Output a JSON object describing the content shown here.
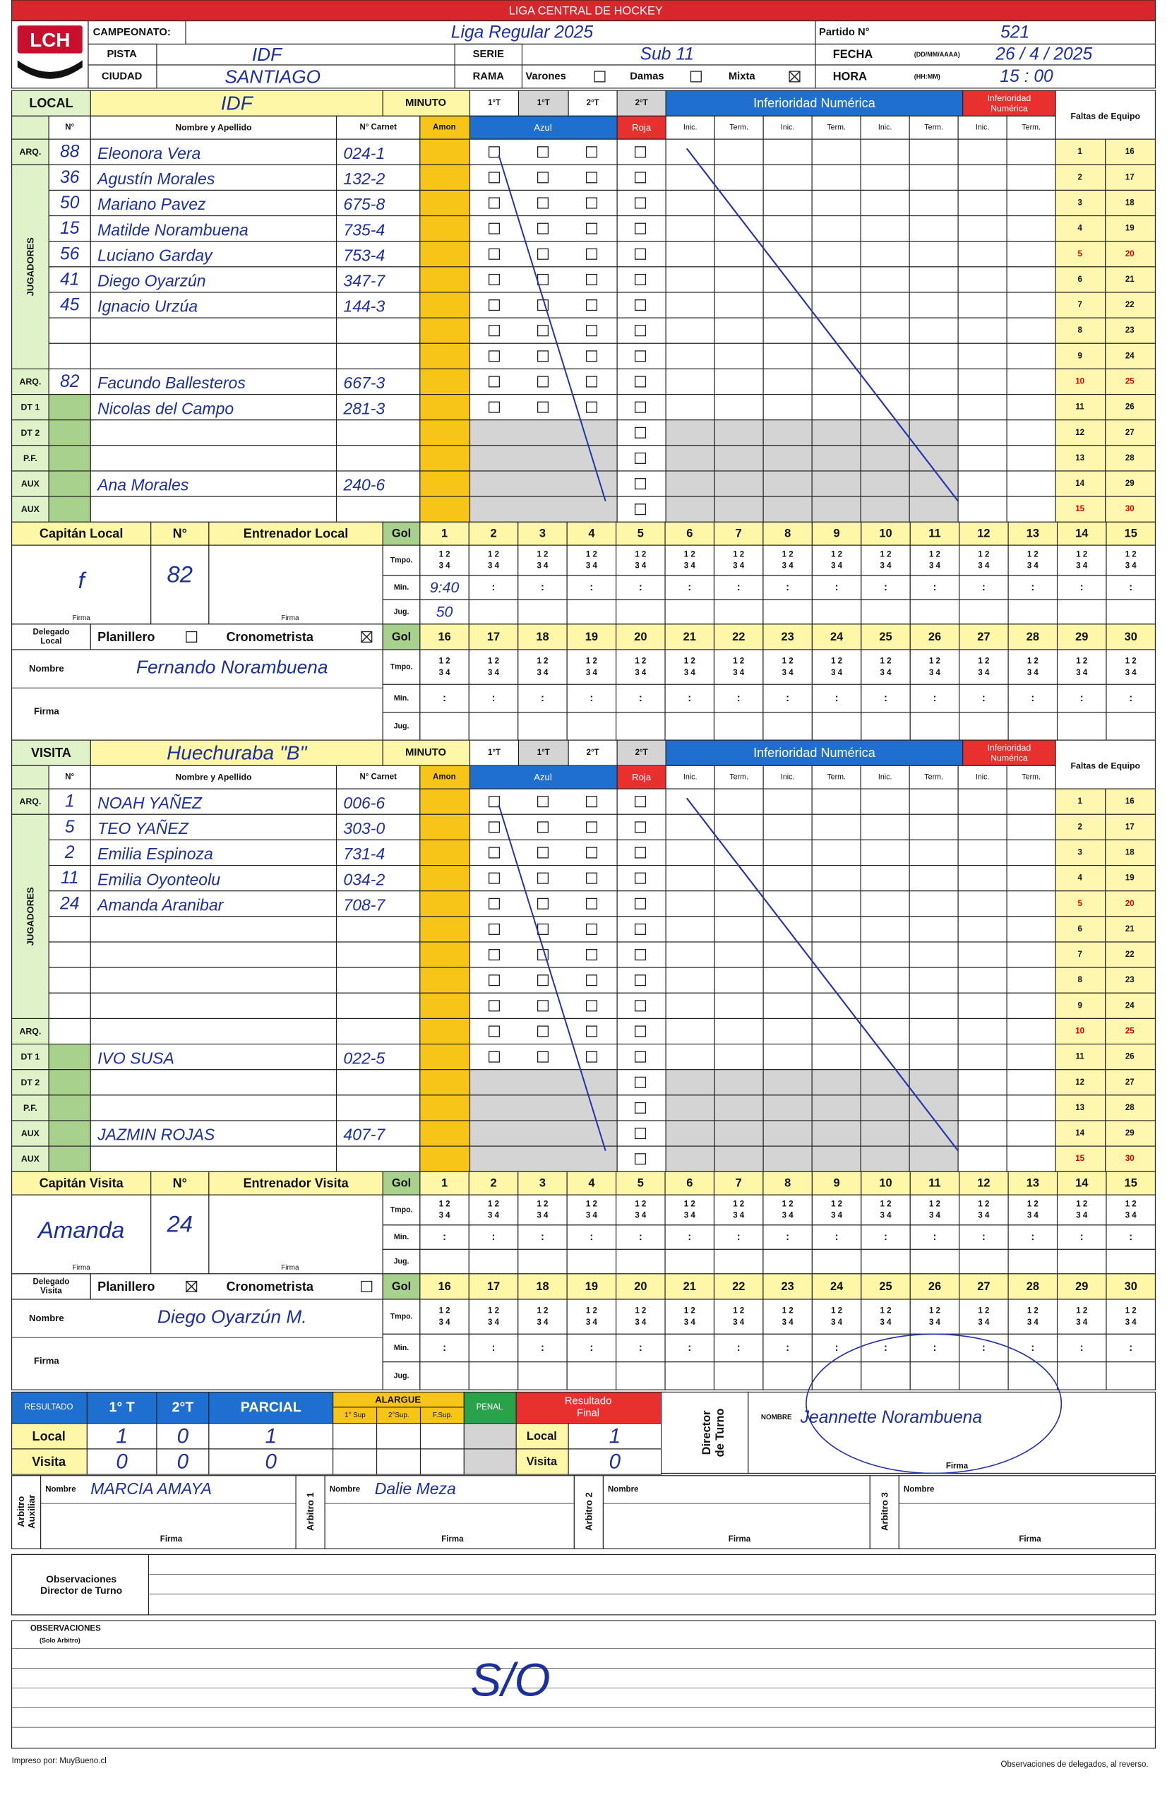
{
  "header": {
    "league": "LIGA CENTRAL DE HOCKEY",
    "logo": "LCH",
    "campeonato_label": "CAMPEONATO:",
    "campeonato": "Liga Regular 2025",
    "pista_label": "PISTA",
    "pista": "IDF",
    "ciudad_label": "CIUDAD",
    "ciudad": "SANTIAGO",
    "serie_label": "SERIE",
    "serie": "Sub 11",
    "rama_label": "RAMA",
    "varones": "Varones",
    "varones_checked": false,
    "damas": "Damas",
    "damas_checked": false,
    "mixta": "Mixta",
    "mixta_checked": true,
    "partido_label": "Partido N°",
    "partido": "521",
    "fecha_label": "FECHA",
    "fecha_format": "(DD/MM/AAAA)",
    "fecha": "26 / 4 / 2025",
    "hora_label": "HORA",
    "hora_format": "(HH:MM)",
    "hora": "15 : 00"
  },
  "form": {
    "team_header": {
      "minuto": "MINUTO",
      "periods": [
        "1°T",
        "1°T",
        "2°T",
        "2°T"
      ],
      "inferioridad": "Inferioridad Numérica",
      "inferioridad_red": [
        "Inferioridad",
        "Numérica"
      ],
      "faltas": "Faltas de Equipo"
    },
    "col_header": {
      "num": "N°",
      "name": "Nombre y Apellido",
      "carnet": "N° Carnet",
      "amon": "Amon",
      "azul": "Azul",
      "roja": "Roja",
      "inic_term": [
        "Inic.",
        "Term."
      ]
    },
    "jugadores": "JUGADORES",
    "foul_numbers": [
      1,
      2,
      3,
      4,
      5,
      6,
      7,
      8,
      9,
      10,
      11,
      12,
      13,
      14,
      15,
      16,
      17,
      18,
      19,
      20,
      21,
      22,
      23,
      24,
      25,
      26,
      27,
      28,
      29,
      30
    ],
    "goal": {
      "gol": "Gol",
      "tmpo": "Tmpo.",
      "min": "Min.",
      "jug": "Jug.",
      "quarters": [
        "1 2",
        "3 4"
      ],
      "colon": ":"
    },
    "goal_numbers": [
      1,
      2,
      3,
      4,
      5,
      6,
      7,
      8,
      9,
      10,
      11,
      12,
      13,
      14,
      15,
      16,
      17,
      18,
      19,
      20,
      21,
      22,
      23,
      24,
      25,
      26,
      27,
      28,
      29,
      30
    ],
    "num": "N°",
    "firma": "Firma",
    "nombre": "Nombre",
    "planillero": "Planillero",
    "cronometrista": "Cronometrista"
  },
  "local": {
    "label": "LOCAL",
    "team": "IDF",
    "rows": [
      {
        "role": "ARQ.",
        "number": 88,
        "name": "Eleonora Vera",
        "carnet": "024-1"
      },
      {
        "number": 36,
        "name": "Agustín Morales",
        "carnet": "132-2"
      },
      {
        "number": 50,
        "name": "Mariano Pavez",
        "carnet": "675-8"
      },
      {
        "number": 15,
        "name": "Matilde Norambuena",
        "carnet": "735-4"
      },
      {
        "number": 56,
        "name": "Luciano Garday",
        "carnet": "753-4"
      },
      {
        "number": 41,
        "name": "Diego Oyarzún",
        "carnet": "347-7"
      },
      {
        "number": 45,
        "name": "Ignacio Urzúa",
        "carnet": "144-3"
      },
      {},
      {},
      {
        "role": "ARQ.",
        "number": 82,
        "name": "Facundo Ballesteros",
        "carnet": "667-3"
      },
      {
        "role": "DT 1",
        "name": "Nicolas del Campo",
        "carnet": "281-3"
      },
      {
        "role": "DT 2"
      },
      {
        "role": "P.F."
      },
      {
        "role": "AUX",
        "name": "Ana Morales",
        "carnet": "240-6"
      },
      {
        "role": "AUX"
      }
    ],
    "captain_label": "Capitán Local",
    "coach_label": "Entrenador Local",
    "captain": "f",
    "captain_number": "82",
    "delegado_label": [
      "Delegado",
      "Local"
    ],
    "planillero_checked": false,
    "cronometrista_checked": true,
    "delegado_name": "Fernando Norambuena",
    "goals": [
      {
        "min": "9:40",
        "jug": "50"
      }
    ]
  },
  "visita": {
    "label": "VISITA",
    "team": "Huechuraba \"B\"",
    "rows": [
      {
        "role": "ARQ.",
        "number": 1,
        "name": "NOAH YAÑEZ",
        "carnet": "006-6"
      },
      {
        "number": 5,
        "name": "TEO YAÑEZ",
        "carnet": "303-0"
      },
      {
        "number": 2,
        "name": "Emilia Espinoza",
        "carnet": "731-4"
      },
      {
        "number": 11,
        "name": "Emilia Oyonteolu",
        "carnet": "034-2"
      },
      {
        "number": 24,
        "name": "Amanda Aranibar",
        "carnet": "708-7"
      },
      {},
      {},
      {},
      {},
      {
        "role": "ARQ."
      },
      {
        "role": "DT 1",
        "name": "IVO SUSA",
        "carnet": "022-5"
      },
      {
        "role": "DT 2"
      },
      {
        "role": "P.F."
      },
      {
        "role": "AUX",
        "name": "JAZMIN ROJAS",
        "carnet": "407-7"
      },
      {
        "role": "AUX"
      }
    ],
    "captain_label": "Capitán Visita",
    "coach_label": "Entrenador Visita",
    "captain": "Amanda",
    "captain_number": "24",
    "delegado_label": [
      "Delegado",
      "Visita"
    ],
    "planillero_checked": true,
    "cronometrista_checked": false,
    "delegado_name": "Diego Oyarzún M."
  },
  "results": {
    "resultado": "RESULTADO",
    "periods": [
      "1° T",
      "2°T",
      "PARCIAL"
    ],
    "alargue": "ALARGUE",
    "alargue_cols": [
      "1° Sup",
      "2°Sup.",
      "F.Sup."
    ],
    "penal": "PENAL",
    "final": [
      "Resultado",
      "Final"
    ],
    "teams": [
      "Local",
      "Visita"
    ],
    "local": [
      1,
      0,
      1
    ],
    "visita": [
      0,
      0,
      0
    ],
    "final_local": 1,
    "final_visita": 0
  },
  "officials": {
    "director_label": [
      "Director",
      "de Turno"
    ],
    "nombre_label": "NOMBRE",
    "director_name": "Jeannette Norambuena",
    "nombre": "Nombre",
    "referees": [
      {
        "label": [
          "Arbitro",
          "Auxiliar"
        ],
        "name": "MARCIA AMAYA"
      },
      {
        "label": [
          "Arbitro 1"
        ],
        "name": "Dalie Meza"
      },
      {
        "label": [
          "Arbitro 2"
        ]
      },
      {
        "label": [
          "Arbitro 3"
        ]
      }
    ]
  },
  "observations": {
    "director_label": [
      "Observaciones",
      "Director de Turno"
    ],
    "arbitro_label": "OBSERVACIONES",
    "arbitro_sub": "(Solo Arbitro)",
    "arbitro_text": "S/O"
  },
  "footer": {
    "left": "Impreso por: MuyBueno.cl",
    "right": "Observaciones de delegados, al reverso."
  }
}
